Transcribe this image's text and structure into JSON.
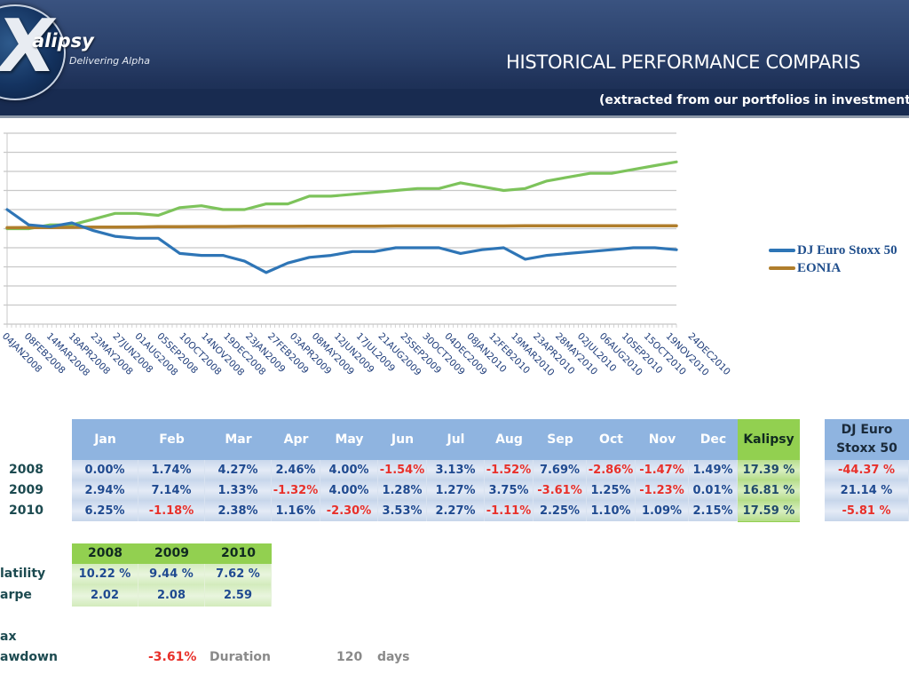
{
  "header": {
    "logo_letter": "X",
    "logo_name": "alipsy",
    "logo_tagline": "Delivering Alpha",
    "title": "HISTORICAL PERFORMANCE COMPARIS",
    "subtitle": "(extracted from our portfolios in investment"
  },
  "chart_data": {
    "type": "line",
    "title": "",
    "xlabel": "",
    "ylabel": "",
    "y_axis_note": "y-axis tick labels cropped; values expressed in gridline units (0 = bottom gridline, 10 = top gridline)",
    "ylim": [
      0,
      10
    ],
    "grid": true,
    "legend_position": "right",
    "x": [
      "04JAN2008",
      "08FEB2008",
      "14MAR2008",
      "18APR2008",
      "23MAY2008",
      "27JUN2008",
      "01AUG2008",
      "05SEP2008",
      "10OCT2008",
      "14NOV2008",
      "19DEC2008",
      "23JAN2009",
      "27FEB2009",
      "03APR2009",
      "08MAY2009",
      "12JUN2009",
      "17JUL2009",
      "21AUG2009",
      "25SEP2009",
      "30OCT2009",
      "04DEC2009",
      "08JAN2010",
      "12FEB2010",
      "19MAR2010",
      "23APR2010",
      "28MAY2010",
      "02JUL2010",
      "06AUG2010",
      "10SEP2010",
      "15OCT2010",
      "19NOV2010",
      "24DEC2010"
    ],
    "series": [
      {
        "name": "Kalipsy",
        "color": "#7dc35b",
        "in_legend": false,
        "values": [
          5.0,
          5.0,
          5.2,
          5.2,
          5.5,
          5.8,
          5.8,
          5.7,
          6.1,
          6.2,
          6.0,
          6.0,
          6.3,
          6.3,
          6.7,
          6.7,
          6.8,
          6.9,
          7.0,
          7.1,
          7.1,
          7.4,
          7.2,
          7.0,
          7.1,
          7.5,
          7.7,
          7.9,
          7.9,
          8.1,
          8.3,
          8.5
        ]
      },
      {
        "name": "DJ Euro Stoxx 50",
        "color": "#2e75b6",
        "in_legend": true,
        "values": [
          6.0,
          5.2,
          5.1,
          5.3,
          4.9,
          4.6,
          4.5,
          4.5,
          3.7,
          3.6,
          3.6,
          3.3,
          2.7,
          3.2,
          3.5,
          3.6,
          3.8,
          3.8,
          4.0,
          4.0,
          4.0,
          3.7,
          3.9,
          4.0,
          3.4,
          3.6,
          3.7,
          3.8,
          3.9,
          4.0,
          4.0,
          3.9
        ]
      },
      {
        "name": "EONIA",
        "color": "#b07e2c",
        "in_legend": true,
        "values": [
          5.05,
          5.06,
          5.06,
          5.07,
          5.08,
          5.08,
          5.09,
          5.1,
          5.1,
          5.11,
          5.11,
          5.12,
          5.12,
          5.12,
          5.13,
          5.13,
          5.13,
          5.13,
          5.14,
          5.14,
          5.14,
          5.14,
          5.14,
          5.14,
          5.15,
          5.15,
          5.15,
          5.15,
          5.15,
          5.15,
          5.15,
          5.15
        ]
      }
    ]
  },
  "legend": [
    {
      "label": "DJ Euro Stoxx 50",
      "color": "#2e75b6"
    },
    {
      "label": "EONIA",
      "color": "#b07e2c"
    }
  ],
  "monthly": {
    "months": [
      "Jan",
      "Feb",
      "Mar",
      "Apr",
      "May",
      "Jun",
      "Jul",
      "Aug",
      "Sep",
      "Oct",
      "Nov",
      "Dec"
    ],
    "total_header": "Kalipsy",
    "benchmark_header_line1": "DJ Euro",
    "benchmark_header_line2": "Stoxx 50",
    "rows": [
      {
        "year": "2008",
        "values": [
          "0.00%",
          "1.74%",
          "4.27%",
          "2.46%",
          "4.00%",
          "-1.54%",
          "3.13%",
          "-1.52%",
          "7.69%",
          "-2.86%",
          "-1.47%",
          "1.49%"
        ],
        "total": "17.39 %",
        "benchmark": "-44.37 %"
      },
      {
        "year": "2009",
        "values": [
          "2.94%",
          "7.14%",
          "1.33%",
          "-1.32%",
          "4.00%",
          "1.28%",
          "1.27%",
          "3.75%",
          "-3.61%",
          "1.25%",
          "-1.23%",
          "0.01%"
        ],
        "total": "16.81 %",
        "benchmark": "21.14 %"
      },
      {
        "year": "2010",
        "values": [
          "6.25%",
          "-1.18%",
          "2.38%",
          "1.16%",
          "-2.30%",
          "3.53%",
          "2.27%",
          "-1.11%",
          "2.25%",
          "1.10%",
          "1.09%",
          "2.15%"
        ],
        "total": "17.59 %",
        "benchmark": "-5.81 %"
      }
    ]
  },
  "stats": {
    "years": [
      "2008",
      "2009",
      "2010"
    ],
    "rows": [
      {
        "label": "latility",
        "values": [
          "10.22 %",
          "9.44 %",
          "7.62 %"
        ]
      },
      {
        "label": "arpe",
        "values": [
          "2.02",
          "2.08",
          "2.59"
        ]
      }
    ]
  },
  "drawdown": {
    "label_line1": "ax",
    "label_line2": "awdown",
    "value": "-3.61%",
    "duration_label": "Duration",
    "duration_value": "120",
    "duration_unit": "days"
  }
}
